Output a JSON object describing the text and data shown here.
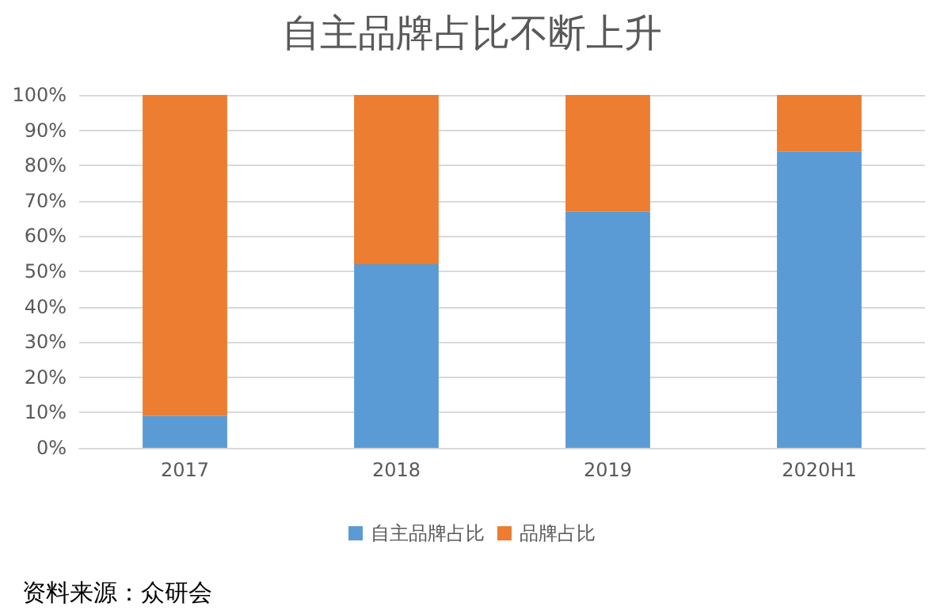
{
  "chart_data": {
    "type": "bar",
    "title": "自主品牌占比不断上升",
    "categories": [
      "2017",
      "2018",
      "2019",
      "2020H1"
    ],
    "series": [
      {
        "name": "自主品牌占比",
        "color": "#5b9bd5",
        "values": [
          9,
          52,
          67,
          84
        ]
      },
      {
        "name": "品牌占比",
        "color": "#ed7d31",
        "values": [
          91,
          48,
          33,
          16
        ]
      }
    ],
    "stacked": true,
    "ylim": [
      0,
      100
    ],
    "yticks": [
      {
        "value": 0,
        "label": "0%"
      },
      {
        "value": 10,
        "label": "10%"
      },
      {
        "value": 20,
        "label": "20%"
      },
      {
        "value": 30,
        "label": "30%"
      },
      {
        "value": 40,
        "label": "40%"
      },
      {
        "value": 50,
        "label": "50%"
      },
      {
        "value": 60,
        "label": "60%"
      },
      {
        "value": 70,
        "label": "70%"
      },
      {
        "value": 80,
        "label": "80%"
      },
      {
        "value": 90,
        "label": "90%"
      },
      {
        "value": 100,
        "label": "100%"
      }
    ],
    "grid": "y",
    "legend": "bottom",
    "annotations": [
      "资料来源：众研会"
    ]
  }
}
